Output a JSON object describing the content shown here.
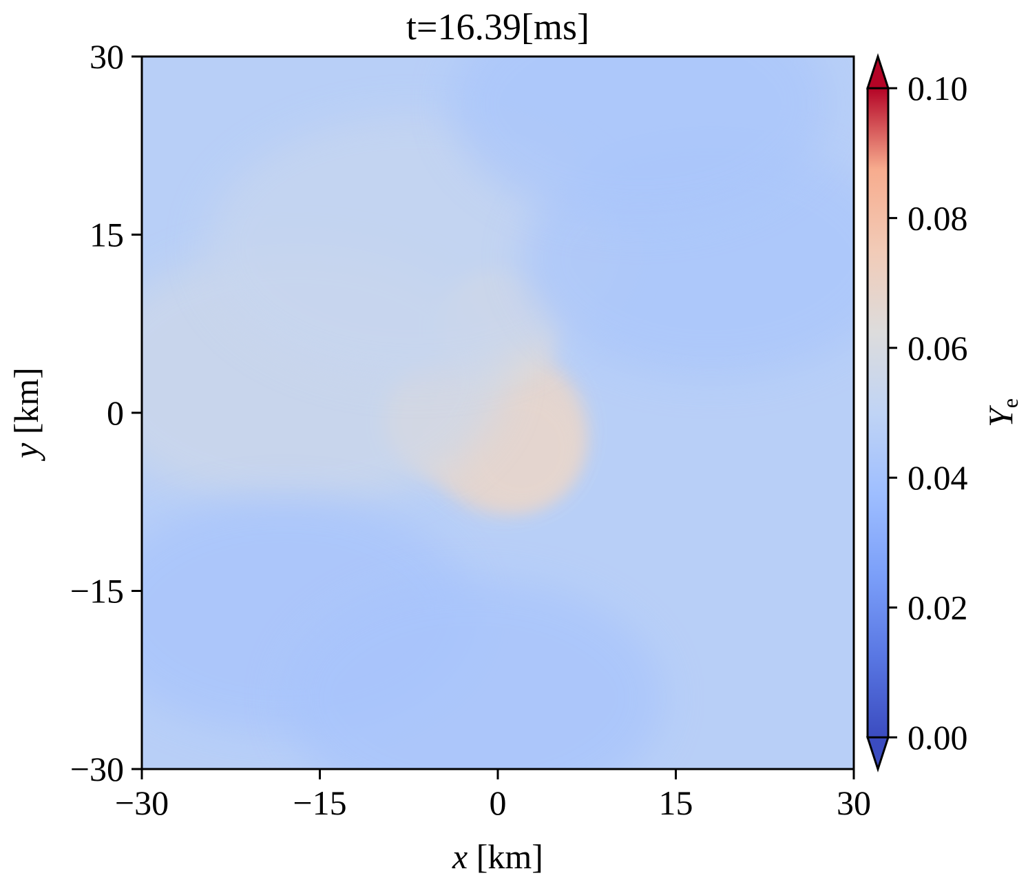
{
  "chart_data": {
    "type": "heatmap",
    "title": "t=16.39[ms]",
    "xlabel": {
      "var": "x",
      "unit": " [km]"
    },
    "ylabel": {
      "var": "y",
      "unit": " [km]"
    },
    "xlim": [
      -30,
      30
    ],
    "ylim": [
      -30,
      30
    ],
    "xticks": [
      -30,
      -15,
      0,
      15,
      30
    ],
    "yticks": [
      -30,
      -15,
      0,
      15,
      30
    ],
    "xtick_labels": [
      "−30",
      "−15",
      "0",
      "15",
      "30"
    ],
    "ytick_labels": [
      "−30",
      "−15",
      "0",
      "15",
      "30"
    ],
    "colormap": "coolwarm",
    "colorbar": {
      "label": {
        "var": "Y",
        "sub": "e"
      },
      "range": [
        0.0,
        0.1
      ],
      "extend": "both",
      "ticks": [
        0.0,
        0.02,
        0.04,
        0.06,
        0.08,
        0.1
      ],
      "tick_labels": [
        "0.00",
        "0.02",
        "0.04",
        "0.06",
        "0.08",
        "0.10"
      ]
    },
    "field": {
      "background_value": 0.047,
      "features": [
        {
          "kind": "core",
          "x": 0.5,
          "y": -1.5,
          "value": 0.068
        },
        {
          "kind": "lobe",
          "x": -4.5,
          "y": -0.5,
          "value": 0.066
        },
        {
          "kind": "lobe",
          "x": 2.0,
          "y": -3.0,
          "value": 0.067
        },
        {
          "kind": "lobe",
          "x": 0.0,
          "y": 7.0,
          "value": 0.064
        },
        {
          "kind": "arm",
          "x": -17.0,
          "y": 3.0,
          "value": 0.056
        },
        {
          "kind": "arm",
          "x": -7.0,
          "y": 14.0,
          "value": 0.053
        },
        {
          "kind": "low",
          "x": -18.0,
          "y": -17.0,
          "value": 0.041
        },
        {
          "kind": "low",
          "x": -2.0,
          "y": -24.0,
          "value": 0.041
        },
        {
          "kind": "low",
          "x": 18.0,
          "y": 13.0,
          "value": 0.042
        },
        {
          "kind": "low",
          "x": 12.0,
          "y": 26.0,
          "value": 0.042
        }
      ]
    }
  }
}
